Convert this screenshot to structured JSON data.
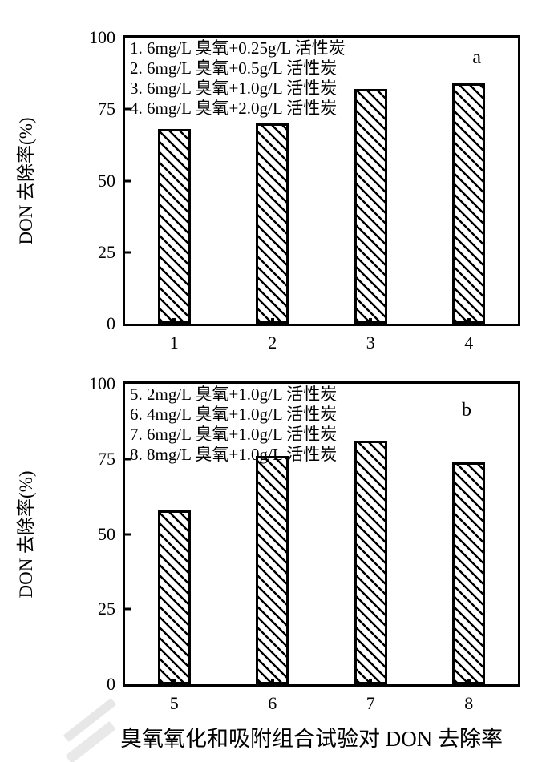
{
  "caption": "臭氧氧化和吸附组合试验对 DON 去除率",
  "chart_data": [
    {
      "type": "bar",
      "panel_label": "a",
      "title": "",
      "xlabel": "",
      "ylabel": "DON 去除率(%)",
      "ylim": [
        0,
        100
      ],
      "yticks": [
        0,
        25,
        50,
        75,
        100
      ],
      "categories": [
        "1",
        "2",
        "3",
        "4"
      ],
      "values": [
        68,
        70,
        82,
        84
      ],
      "legend": [
        "1. 6mg/L 臭氧+0.25g/L 活性炭",
        "2. 6mg/L 臭氧+0.5g/L 活性炭",
        "3. 6mg/L 臭氧+1.0g/L 活性炭",
        "4. 6mg/L 臭氧+2.0g/L 活性炭"
      ],
      "legend_position": "top-left-inside",
      "grid": false,
      "hatch": "diagonal-down",
      "bar_fill": "#ffffff",
      "line_color": "#000000"
    },
    {
      "type": "bar",
      "panel_label": "b",
      "title": "",
      "xlabel": "",
      "ylabel": "DON 去除率(%)",
      "ylim": [
        0,
        100
      ],
      "yticks": [
        0,
        25,
        50,
        75,
        100
      ],
      "categories": [
        "5",
        "6",
        "7",
        "8"
      ],
      "values": [
        58,
        76,
        81,
        74
      ],
      "legend": [
        "5. 2mg/L 臭氧+1.0g/L 活性炭",
        "6. 4mg/L 臭氧+1.0g/L 活性炭",
        "7. 6mg/L 臭氧+1.0g/L 活性炭",
        "8. 8mg/L 臭氧+1.0g/L 活性炭"
      ],
      "legend_position": "top-left-inside",
      "grid": false,
      "hatch": "diagonal-down",
      "bar_fill": "#ffffff",
      "line_color": "#000000"
    }
  ]
}
